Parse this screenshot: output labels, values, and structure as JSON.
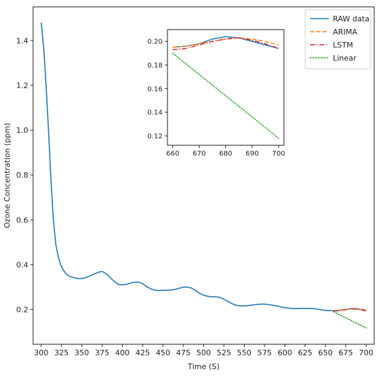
{
  "chart_data": [
    {
      "type": "line",
      "title": "",
      "xlabel": "Time (S)",
      "ylabel": "Ozone Concentration (ppm)",
      "xlim": [
        290,
        710
      ],
      "ylim": [
        0.045,
        1.55
      ],
      "xticks": [
        300,
        325,
        350,
        375,
        400,
        425,
        450,
        475,
        500,
        525,
        550,
        575,
        600,
        625,
        650,
        675,
        700
      ],
      "yticks": [
        0.2,
        0.4,
        0.6,
        0.8,
        1.0,
        1.2,
        1.4
      ],
      "ytick_labels": [
        "0.2",
        "0.4",
        "0.6",
        "0.8",
        "1.0",
        "1.2",
        "1.4"
      ],
      "grid": false,
      "legend_position": "top-right",
      "series": [
        {
          "name": "RAW data",
          "color": "#1f77b4",
          "style": "solid",
          "x": [
            300,
            303,
            306,
            309,
            312,
            315,
            318,
            321,
            324,
            327,
            330,
            333,
            336,
            340,
            345,
            350,
            355,
            360,
            365,
            370,
            375,
            380,
            385,
            390,
            395,
            400,
            405,
            410,
            415,
            420,
            425,
            430,
            435,
            440,
            445,
            450,
            455,
            460,
            465,
            470,
            475,
            480,
            485,
            490,
            495,
            500,
            505,
            510,
            515,
            520,
            525,
            530,
            535,
            540,
            545,
            550,
            555,
            560,
            565,
            570,
            575,
            580,
            585,
            590,
            595,
            600,
            605,
            610,
            615,
            620,
            625,
            630,
            635,
            640,
            645,
            650,
            655,
            660,
            665,
            670,
            675,
            680,
            685,
            690,
            695,
            700
          ],
          "y": [
            1.48,
            1.37,
            1.2,
            1.0,
            0.78,
            0.6,
            0.49,
            0.435,
            0.4,
            0.378,
            0.362,
            0.352,
            0.347,
            0.342,
            0.338,
            0.338,
            0.342,
            0.35,
            0.358,
            0.366,
            0.37,
            0.36,
            0.342,
            0.325,
            0.312,
            0.31,
            0.312,
            0.318,
            0.322,
            0.322,
            0.315,
            0.302,
            0.292,
            0.286,
            0.285,
            0.286,
            0.286,
            0.287,
            0.29,
            0.295,
            0.3,
            0.3,
            0.296,
            0.285,
            0.272,
            0.264,
            0.259,
            0.257,
            0.257,
            0.254,
            0.246,
            0.236,
            0.226,
            0.219,
            0.216,
            0.216,
            0.218,
            0.22,
            0.222,
            0.224,
            0.224,
            0.222,
            0.219,
            0.216,
            0.212,
            0.208,
            0.206,
            0.204,
            0.204,
            0.205,
            0.205,
            0.205,
            0.204,
            0.202,
            0.199,
            0.196,
            0.195,
            0.195,
            0.196,
            0.198,
            0.2,
            0.203,
            0.204,
            0.203,
            0.2,
            0.196
          ]
        },
        {
          "name": "ARIMA",
          "color": "#ff7f0e",
          "style": "dashed",
          "x": [
            660,
            665,
            670,
            675,
            680,
            685,
            690,
            695,
            700
          ],
          "y": [
            0.195,
            0.196,
            0.198,
            0.2,
            0.202,
            0.203,
            0.202,
            0.2,
            0.197
          ]
        },
        {
          "name": "LSTM",
          "color": "#d62728",
          "style": "dashdot",
          "x": [
            660,
            665,
            670,
            675,
            680,
            685,
            690,
            695,
            700
          ],
          "y": [
            0.193,
            0.194,
            0.197,
            0.2,
            0.202,
            0.203,
            0.201,
            0.198,
            0.194
          ]
        },
        {
          "name": "Linear",
          "color": "#2ca02c",
          "style": "dotted",
          "x": [
            660,
            700
          ],
          "y": [
            0.19,
            0.118
          ]
        }
      ]
    },
    {
      "type": "line",
      "title": "",
      "xlabel": "",
      "ylabel": "",
      "xlim": [
        658,
        702
      ],
      "ylim": [
        0.112,
        0.21
      ],
      "xticks": [
        660,
        670,
        680,
        690,
        700
      ],
      "yticks": [
        0.12,
        0.14,
        0.16,
        0.18,
        0.2
      ],
      "ytick_labels": [
        "0.12",
        "0.14",
        "0.16",
        "0.18",
        "0.20"
      ],
      "grid": false,
      "series": [
        {
          "name": "RAW data",
          "color": "#1f77b4",
          "style": "solid",
          "x": [
            660,
            665,
            670,
            675,
            680,
            685,
            690,
            695,
            700
          ],
          "y": [
            0.195,
            0.196,
            0.198,
            0.202,
            0.204,
            0.203,
            0.2,
            0.197,
            0.194
          ]
        },
        {
          "name": "ARIMA",
          "color": "#ff7f0e",
          "style": "dashed",
          "x": [
            660,
            665,
            670,
            675,
            680,
            685,
            690,
            695,
            700
          ],
          "y": [
            0.195,
            0.196,
            0.198,
            0.2,
            0.202,
            0.203,
            0.202,
            0.2,
            0.197
          ]
        },
        {
          "name": "LSTM",
          "color": "#d62728",
          "style": "dashdot",
          "x": [
            660,
            665,
            670,
            675,
            680,
            685,
            690,
            695,
            700
          ],
          "y": [
            0.193,
            0.194,
            0.197,
            0.2,
            0.202,
            0.203,
            0.201,
            0.198,
            0.194
          ]
        },
        {
          "name": "Linear",
          "color": "#2ca02c",
          "style": "dotted",
          "x": [
            660,
            700
          ],
          "y": [
            0.19,
            0.118
          ]
        }
      ]
    }
  ]
}
